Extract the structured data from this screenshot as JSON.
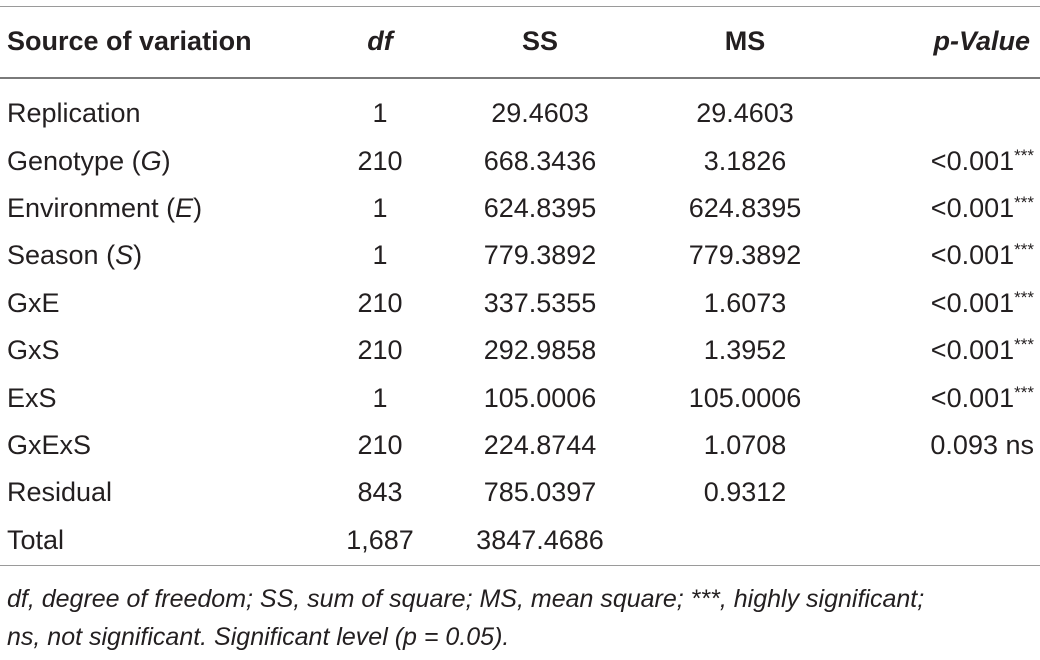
{
  "table": {
    "headers": {
      "source": "Source of variation",
      "df": "df",
      "ss": "SS",
      "ms": "MS",
      "p": "p-Value"
    },
    "rows": [
      {
        "source_pre": "Replication",
        "source_var": "",
        "source_post": "",
        "df": "1",
        "ss": "29.4603",
        "ms": "29.4603",
        "p": "",
        "p_sup": ""
      },
      {
        "source_pre": "Genotype (",
        "source_var": "G",
        "source_post": ")",
        "df": "210",
        "ss": "668.3436",
        "ms": "3.1826",
        "p": "<0.001",
        "p_sup": "***"
      },
      {
        "source_pre": "Environment (",
        "source_var": "E",
        "source_post": ")",
        "df": "1",
        "ss": "624.8395",
        "ms": "624.8395",
        "p": "<0.001",
        "p_sup": "***"
      },
      {
        "source_pre": "Season (",
        "source_var": "S",
        "source_post": ")",
        "df": "1",
        "ss": "779.3892",
        "ms": "779.3892",
        "p": "<0.001",
        "p_sup": "***"
      },
      {
        "source_pre": "GxE",
        "source_var": "",
        "source_post": "",
        "df": "210",
        "ss": "337.5355",
        "ms": "1.6073",
        "p": "<0.001",
        "p_sup": "***"
      },
      {
        "source_pre": "GxS",
        "source_var": "",
        "source_post": "",
        "df": "210",
        "ss": "292.9858",
        "ms": "1.3952",
        "p": "<0.001",
        "p_sup": "***"
      },
      {
        "source_pre": "ExS",
        "source_var": "",
        "source_post": "",
        "df": "1",
        "ss": "105.0006",
        "ms": "105.0006",
        "p": "<0.001",
        "p_sup": "***"
      },
      {
        "source_pre": "GxExS",
        "source_var": "",
        "source_post": "",
        "df": "210",
        "ss": "224.8744",
        "ms": "1.0708",
        "p": "0.093 ns",
        "p_sup": ""
      },
      {
        "source_pre": "Residual",
        "source_var": "",
        "source_post": "",
        "df": "843",
        "ss": "785.0397",
        "ms": "0.9312",
        "p": "",
        "p_sup": ""
      },
      {
        "source_pre": "Total",
        "source_var": "",
        "source_post": "",
        "df": "1,687",
        "ss": "3847.4686",
        "ms": "",
        "p": "",
        "p_sup": ""
      }
    ]
  },
  "footnote": {
    "line1": "df, degree of freedom; SS, sum of square; MS, mean square; ***, highly significant;",
    "line2": "ns, not significant. Significant level (p = 0.05)."
  }
}
